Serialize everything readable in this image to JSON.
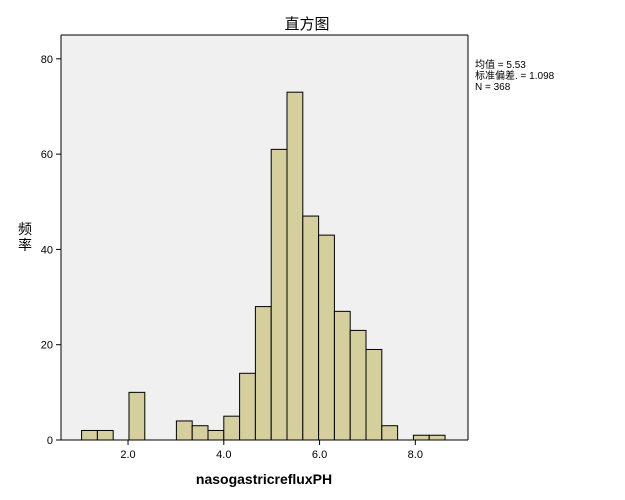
{
  "chart_data": {
    "type": "bar",
    "title": "直方图",
    "xlabel": "nasogastricrefluxPH",
    "ylabel_chars": [
      "频",
      "率"
    ],
    "bin_width": 0.33,
    "bins": [
      {
        "x0": 1.03,
        "value": 2
      },
      {
        "x0": 1.36,
        "value": 2
      },
      {
        "x0": 2.02,
        "value": 10
      },
      {
        "x0": 3.01,
        "value": 4
      },
      {
        "x0": 3.34,
        "value": 3
      },
      {
        "x0": 3.67,
        "value": 2
      },
      {
        "x0": 4.0,
        "value": 5
      },
      {
        "x0": 4.33,
        "value": 14
      },
      {
        "x0": 4.66,
        "value": 28
      },
      {
        "x0": 4.99,
        "value": 61
      },
      {
        "x0": 5.32,
        "value": 73
      },
      {
        "x0": 5.65,
        "value": 47
      },
      {
        "x0": 5.98,
        "value": 43
      },
      {
        "x0": 6.31,
        "value": 27
      },
      {
        "x0": 6.64,
        "value": 23
      },
      {
        "x0": 6.97,
        "value": 19
      },
      {
        "x0": 7.3,
        "value": 3
      },
      {
        "x0": 7.96,
        "value": 1
      },
      {
        "x0": 8.29,
        "value": 1
      }
    ],
    "xlim": [
      0.6,
      9.1
    ],
    "ylim": [
      0,
      85
    ],
    "x_ticks": [
      2.0,
      4.0,
      6.0,
      8.0
    ],
    "x_tick_labels": [
      "2.0",
      "4.0",
      "6.0",
      "8.0"
    ],
    "y_ticks": [
      0,
      20,
      40,
      60,
      80
    ],
    "y_tick_labels": [
      "0",
      "20",
      "40",
      "60",
      "80"
    ],
    "stats": [
      "均值 = 5.53",
      "标准偏差. = 1.098",
      "N = 368"
    ],
    "colors": {
      "bar_fill": "#d4cf9c",
      "bar_stroke": "#000000",
      "plot_bg": "#f0f0f0",
      "axis": "#000000"
    },
    "grid": false,
    "legend": "none"
  }
}
